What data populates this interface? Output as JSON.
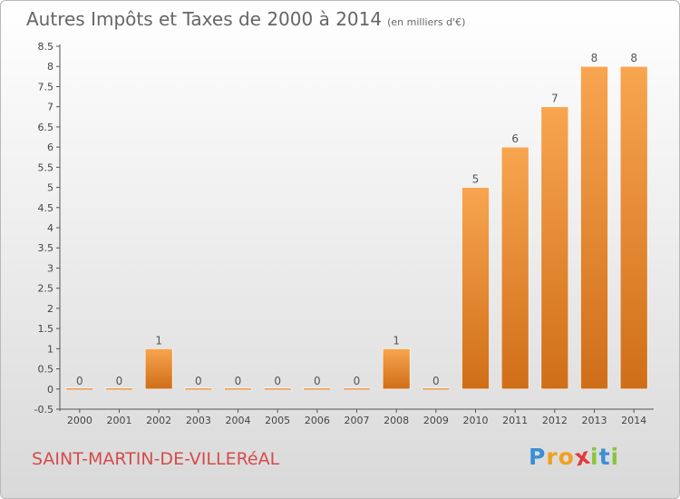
{
  "chart_data": {
    "type": "bar",
    "title": "Autres Impôts et Taxes de 2000 à 2014",
    "subtitle": "(en milliers d'€)",
    "xlabel": "",
    "ylabel": "",
    "categories": [
      "2000",
      "2001",
      "2002",
      "2003",
      "2004",
      "2005",
      "2006",
      "2007",
      "2008",
      "2009",
      "2010",
      "2011",
      "2012",
      "2013",
      "2014"
    ],
    "values": [
      0,
      0,
      1,
      0,
      0,
      0,
      0,
      0,
      1,
      0,
      5,
      6,
      7,
      8,
      8
    ],
    "data_labels": [
      "0",
      "0",
      "1",
      "0",
      "0",
      "0",
      "0",
      "0",
      "1",
      "0",
      "5",
      "6",
      "7",
      "8",
      "8"
    ],
    "ylim": [
      -0.5,
      8.5
    ],
    "yticks": [
      -0.5,
      0,
      0.5,
      1,
      1.5,
      2,
      2.5,
      3,
      3.5,
      4,
      4.5,
      5,
      5.5,
      6,
      6.5,
      7,
      7.5,
      8,
      8.5
    ],
    "ytick_labels": [
      "-0.5",
      "0",
      "0.5",
      "1",
      "1.5",
      "2",
      "2.5",
      "3",
      "3.5",
      "4",
      "4.5",
      "5",
      "5.5",
      "6",
      "6.5",
      "7",
      "7.5",
      "8",
      "8.5"
    ],
    "grid": false,
    "colors": {
      "bar_light": "#f8a550",
      "bar_dark": "#d06e18",
      "axis": "#555555"
    }
  },
  "commune": "SAINT-MARTIN-DE-VILLERéAL",
  "brand": {
    "letters": [
      "P",
      "r",
      "o",
      "x",
      "i",
      "t",
      "i"
    ],
    "colors": [
      "#3a8fd6",
      "#f0a020",
      "#f0a020",
      "#e23b3b",
      "#8ac43f",
      "#3a8fd6",
      "#8ac43f"
    ]
  }
}
